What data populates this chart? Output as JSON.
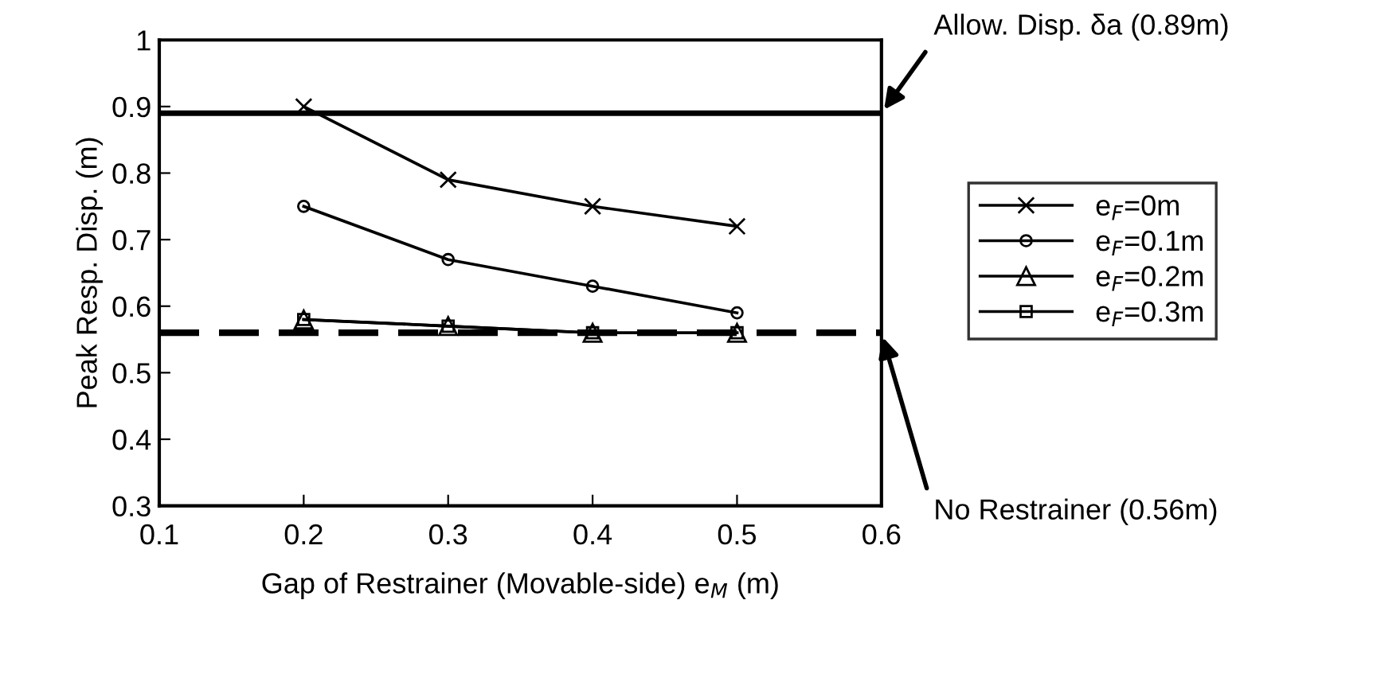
{
  "chart_data": {
    "type": "line",
    "xlabel": "Gap of Restrainer (Movable-side) e$_{M}$ (m)",
    "ylabel": "Peak Resp. Disp. (m)",
    "x": [
      0.2,
      0.3,
      0.4,
      0.5
    ],
    "series": [
      {
        "name": "e$_{F}$=0m",
        "color": "#000000",
        "marker": "cross",
        "values": [
          0.9,
          0.79,
          0.75,
          0.72
        ]
      },
      {
        "name": "e$_{F}$=0.1m",
        "color": "#000000",
        "marker": "circle",
        "values": [
          0.75,
          0.67,
          0.63,
          0.59
        ]
      },
      {
        "name": "e$_{F}$=0.2m",
        "color": "#000000",
        "marker": "triangle",
        "values": [
          0.58,
          0.57,
          0.56,
          0.56
        ]
      },
      {
        "name": "e$_{F}$=0.3m",
        "color": "#000000",
        "marker": "square",
        "values": [
          0.58,
          0.57,
          0.56,
          0.56
        ]
      }
    ],
    "xlim": [
      0.1,
      0.6
    ],
    "xticks": [
      0.1,
      0.2,
      0.3,
      0.4,
      0.5,
      0.6
    ],
    "ylim": [
      0.3,
      1
    ],
    "yticks": [
      0.3,
      0.4,
      0.5,
      0.6,
      0.7,
      0.8,
      0.9,
      1
    ],
    "ref_lines": [
      {
        "axis": "y",
        "value": 0.89,
        "label": "Allow. Disp. δa (0.89m)",
        "color": "#000000",
        "line_style": "solid"
      },
      {
        "axis": "y",
        "value": 0.56,
        "label": "No Restrainer (0.56m)",
        "color": "#000000",
        "line_style": "dashed"
      }
    ],
    "grid": false,
    "legend": "right",
    "line_style": "solid"
  }
}
